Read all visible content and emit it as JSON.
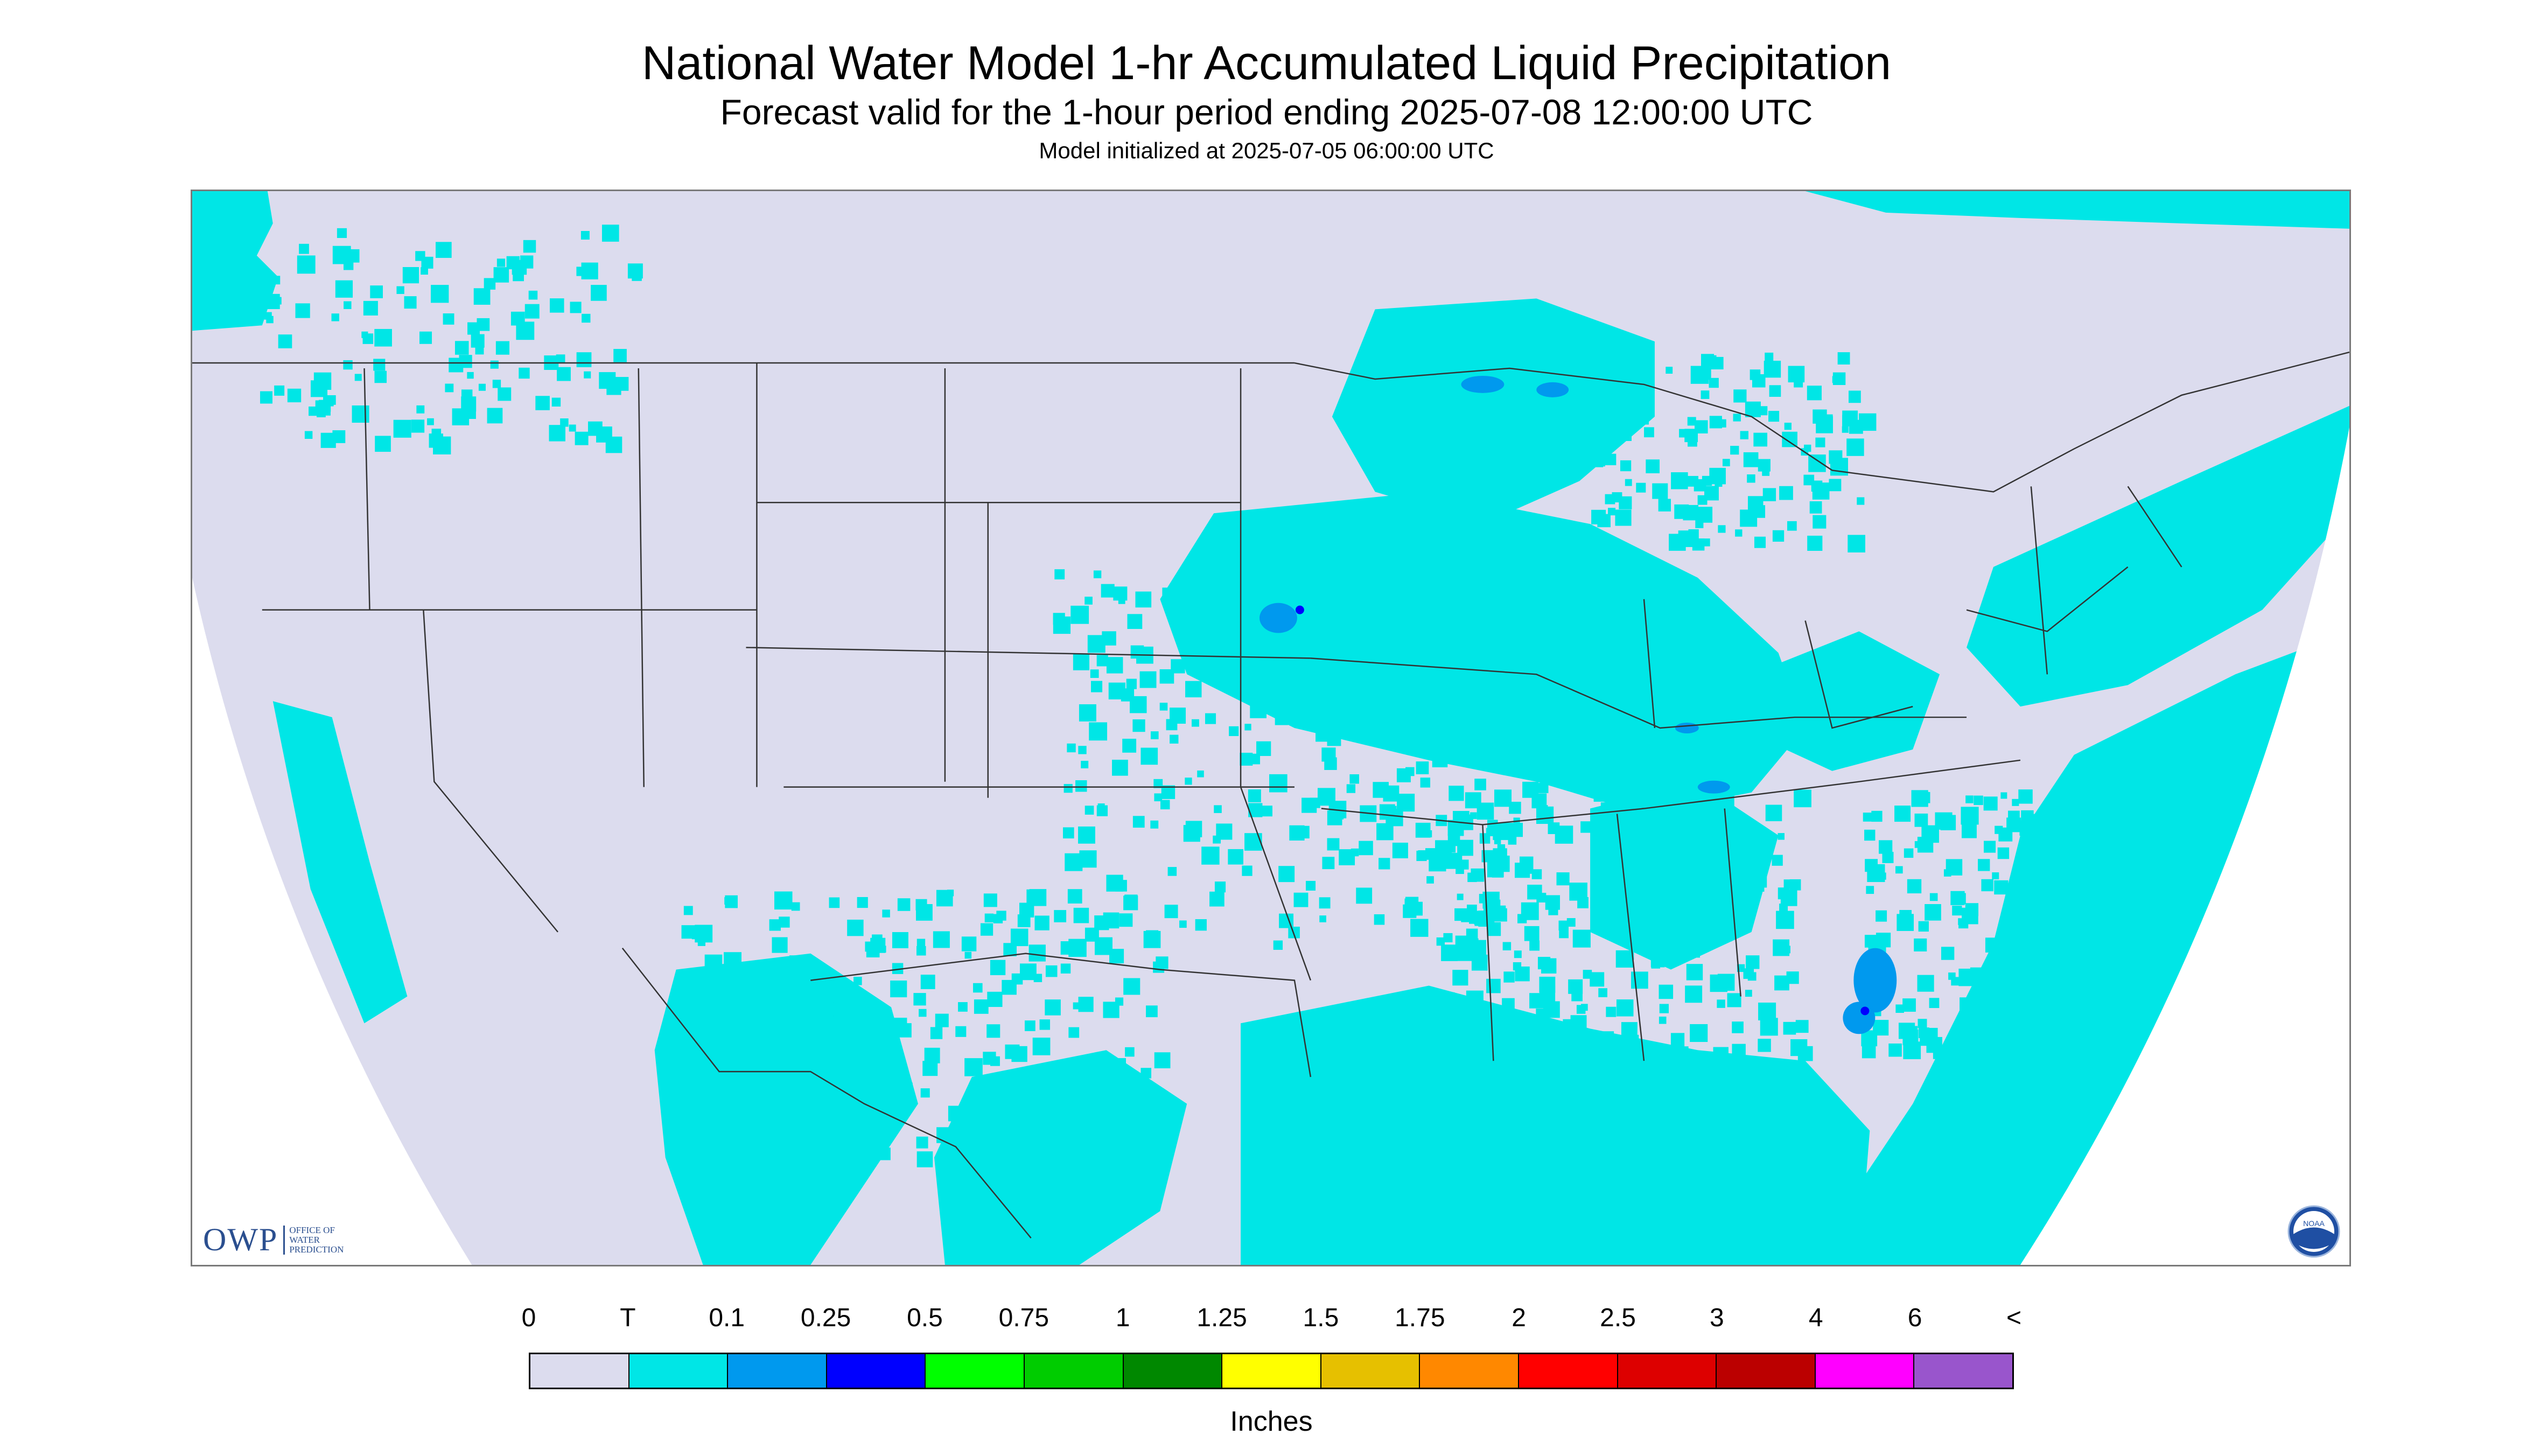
{
  "titles": {
    "main": "National Water Model 1-hr Accumulated Liquid Precipitation",
    "subtitle": "Forecast valid for the 1-hour period ending 2025-07-08 12:00:00 UTC",
    "init": "Model initialized at 2025-07-05 06:00:00 UTC"
  },
  "logos": {
    "owp_letters": "OWP",
    "owp_text": [
      "OFFICE OF",
      "WATER",
      "PREDICTION"
    ],
    "noaa_text": "NOAA"
  },
  "chart_data": {
    "type": "heatmap",
    "title": "National Water Model 1-hr Accumulated Liquid Precipitation",
    "units": "Inches",
    "legend_placement": "bottom",
    "colorbar": {
      "tick_labels": [
        "0",
        "T",
        "0.1",
        "0.25",
        "0.5",
        "0.75",
        "1",
        "1.25",
        "1.5",
        "1.75",
        "2",
        "2.5",
        "3",
        "4",
        "6",
        "<"
      ],
      "colors": [
        "#dcdcee",
        "#00e6e6",
        "#0099ee",
        "#0000ff",
        "#00ff00",
        "#00cc00",
        "#008800",
        "#ffff00",
        "#e6c000",
        "#ff8800",
        "#ff0000",
        "#dd0000",
        "#bb0000",
        "#ff00ff",
        "#9955cc"
      ]
    },
    "colors": {
      "no_precip": "#dcdcee",
      "trace": "#00e6e6",
      "light": "#0099ee",
      "moderate": "#0000ff",
      "border_lines": "#333333"
    }
  }
}
